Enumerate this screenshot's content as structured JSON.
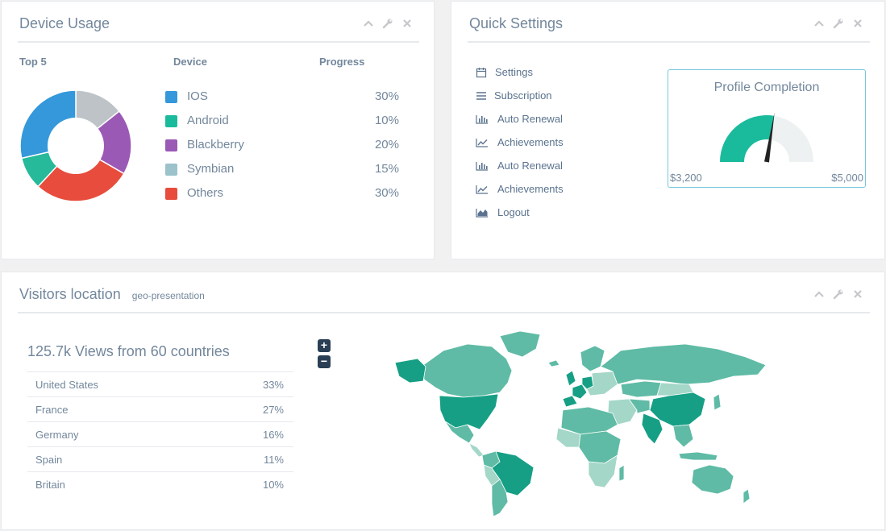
{
  "device_usage": {
    "title": "Device Usage",
    "headers": {
      "top": "Top 5",
      "device": "Device",
      "progress": "Progress"
    },
    "items": [
      {
        "label": "IOS",
        "percent": "30%",
        "value": 30,
        "color": "#3498db"
      },
      {
        "label": "Android",
        "percent": "10%",
        "value": 10,
        "color": "#1abb9c"
      },
      {
        "label": "Blackberry",
        "percent": "20%",
        "value": 20,
        "color": "#9b59b6"
      },
      {
        "label": "Symbian",
        "percent": "15%",
        "value": 15,
        "color": "#9cc2cb"
      },
      {
        "label": "Others",
        "percent": "30%",
        "value": 30,
        "color": "#e74c3c"
      }
    ],
    "donut_colors": [
      "#bdc3c7",
      "#9b59b6",
      "#e74c3c",
      "#26b99a",
      "#3498db"
    ]
  },
  "quick_settings": {
    "title": "Quick Settings",
    "items": [
      {
        "label": "Settings",
        "icon": "calendar-icon"
      },
      {
        "label": "Subscription",
        "icon": "bars-icon"
      },
      {
        "label": "Auto Renewal",
        "icon": "bar-chart-icon"
      },
      {
        "label": "Achievements",
        "icon": "line-chart-icon"
      },
      {
        "label": "Auto Renewal",
        "icon": "bar-chart-icon"
      },
      {
        "label": "Achievements",
        "icon": "line-chart-icon"
      },
      {
        "label": "Logout",
        "icon": "area-chart-icon"
      }
    ],
    "profile": {
      "title": "Profile Completion",
      "min_label": "$3,200",
      "max_label": "$5,000",
      "fill_fraction": 0.55,
      "fill_color": "#1abb9c"
    }
  },
  "visitors": {
    "title": "Visitors location",
    "subtitle": "geo-presentation",
    "summary": "125.7k Views from 60 countries",
    "zoom_in": "+",
    "zoom_out": "−",
    "countries": [
      {
        "name": "United States",
        "percent": "33%"
      },
      {
        "name": "France",
        "percent": "27%"
      },
      {
        "name": "Germany",
        "percent": "16%"
      },
      {
        "name": "Spain",
        "percent": "11%"
      },
      {
        "name": "Britain",
        "percent": "10%"
      }
    ],
    "map_colors": {
      "base": "#5fbba5",
      "light": "#a4d7c8",
      "dark": "#169f85"
    }
  }
}
